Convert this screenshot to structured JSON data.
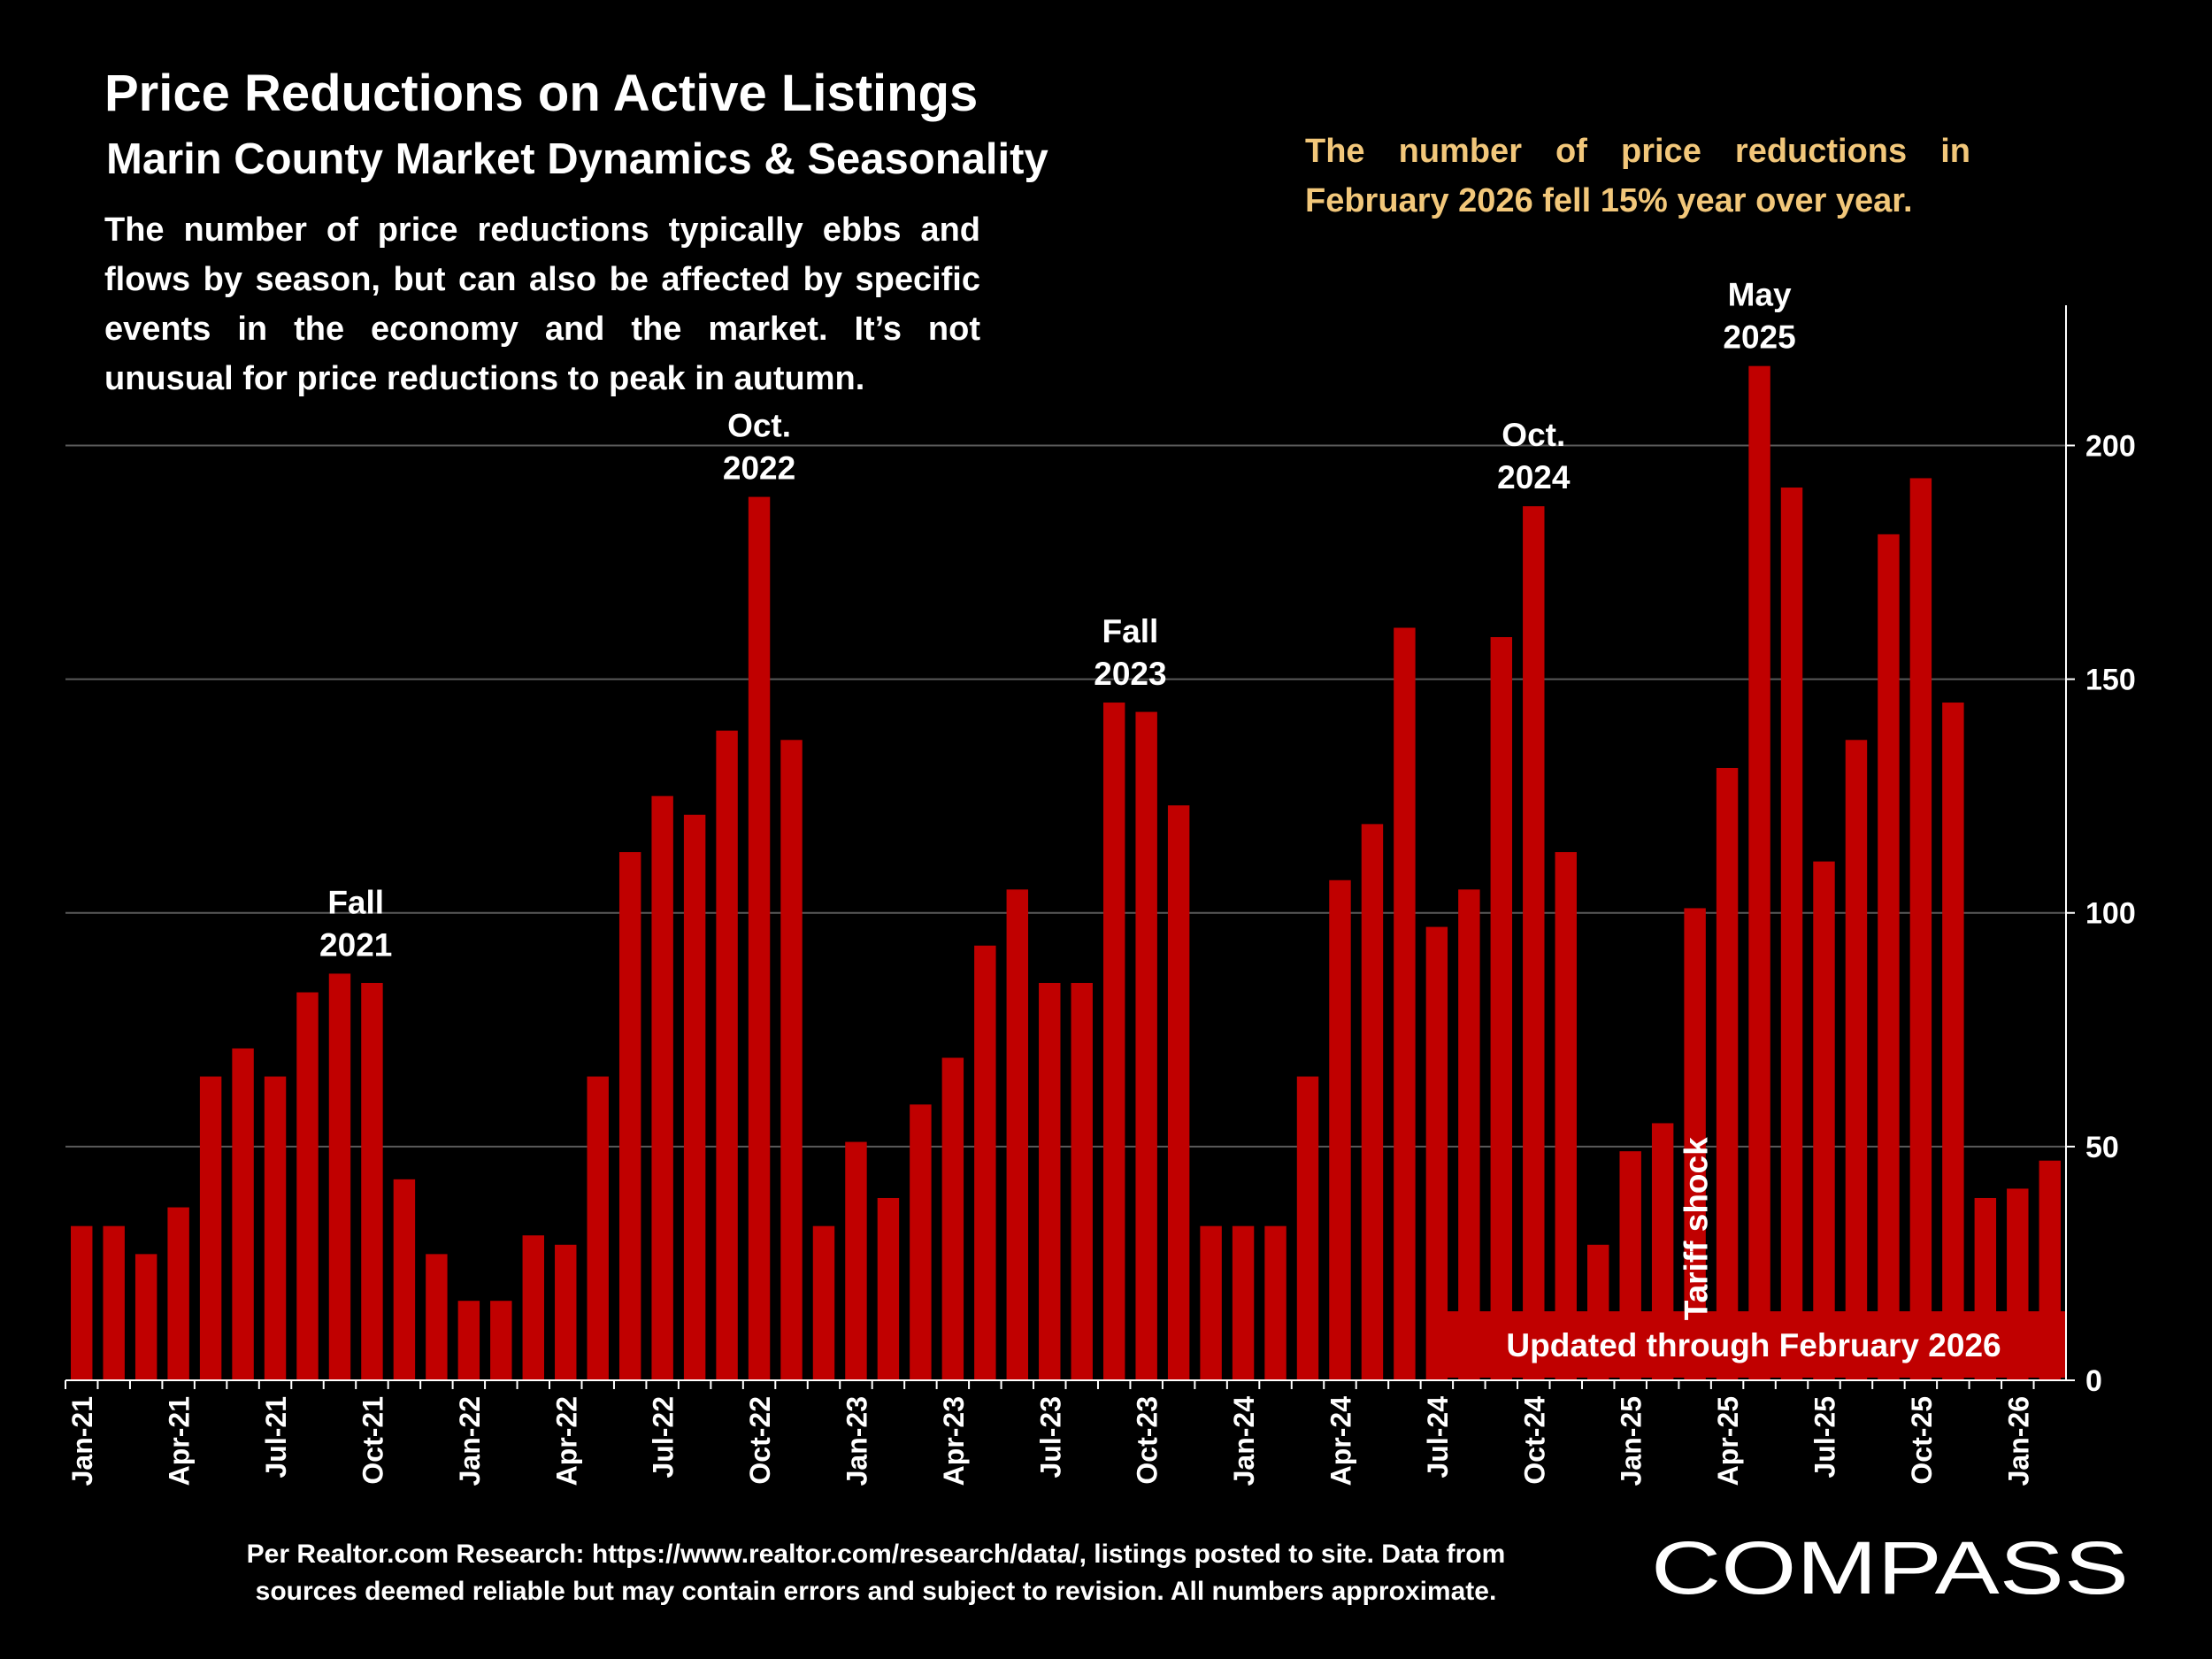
{
  "title": "Price Reductions on Active Listings",
  "subtitle": "Marin County Market Dynamics & Seasonality",
  "description": "The number of price reductions typically ebbs and flows by season, but can also be affected by specific events in the economy and the market. It’s not unusual for price reductions to peak in autumn.",
  "callout": "The number of price reductions in February 2026 fell 15% year over year.",
  "footnote": {
    "line1": "Per Realtor.com Research:  https://www.realtor.com/research/data/, listings posted to site. Data from",
    "line2": "sources deemed reliable but may contain errors and subject to revision. All numbers approximate."
  },
  "logo": {
    "text": "COMPASS"
  },
  "banner": "Updated through February 2026",
  "colors": {
    "bar": "#c00000",
    "background": "#000000",
    "callout": "#f2c77a",
    "grid": "#5a5a5a"
  },
  "chart_data": {
    "type": "bar",
    "categories": [
      "Jan-21",
      "Feb-21",
      "Mar-21",
      "Apr-21",
      "May-21",
      "Jun-21",
      "Jul-21",
      "Aug-21",
      "Sep-21",
      "Oct-21",
      "Nov-21",
      "Dec-21",
      "Jan-22",
      "Feb-22",
      "Mar-22",
      "Apr-22",
      "May-22",
      "Jun-22",
      "Jul-22",
      "Aug-22",
      "Sep-22",
      "Oct-22",
      "Nov-22",
      "Dec-22",
      "Jan-23",
      "Feb-23",
      "Mar-23",
      "Apr-23",
      "May-23",
      "Jun-23",
      "Jul-23",
      "Aug-23",
      "Sep-23",
      "Oct-23",
      "Nov-23",
      "Dec-23",
      "Jan-24",
      "Feb-24",
      "Mar-24",
      "Apr-24",
      "May-24",
      "Jun-24",
      "Jul-24",
      "Aug-24",
      "Sep-24",
      "Oct-24",
      "Nov-24",
      "Dec-24",
      "Jan-25",
      "Feb-25",
      "Mar-25",
      "Apr-25",
      "May-25",
      "Jun-25",
      "Jul-25",
      "Aug-25",
      "Sep-25",
      "Oct-25",
      "Nov-25",
      "Dec-25",
      "Jan-26",
      "Feb-26"
    ],
    "values": [
      33,
      33,
      27,
      37,
      65,
      71,
      65,
      83,
      87,
      85,
      43,
      27,
      17,
      17,
      31,
      29,
      65,
      113,
      125,
      121,
      139,
      189,
      137,
      33,
      51,
      39,
      59,
      69,
      93,
      105,
      85,
      85,
      145,
      143,
      123,
      33,
      33,
      33,
      65,
      107,
      119,
      161,
      97,
      105,
      159,
      187,
      113,
      29,
      49,
      55,
      101,
      131,
      217,
      191,
      111,
      137,
      181,
      193,
      145,
      39,
      41,
      47
    ],
    "tick_labels": [
      "Jan-21",
      "Apr-21",
      "Jul-21",
      "Oct-21",
      "Jan-22",
      "Apr-22",
      "Jul-22",
      "Oct-22",
      "Jan-23",
      "Apr-23",
      "Jul-23",
      "Oct-23",
      "Jan-24",
      "Apr-24",
      "Jul-24",
      "Oct-24",
      "Jan-25",
      "Apr-25",
      "Jul-25",
      "Oct-25",
      "Jan-26"
    ],
    "ylim": [
      0,
      230
    ],
    "yticks": [
      0,
      50,
      100,
      150,
      200
    ],
    "y_axis_side": "right",
    "grid": true,
    "annotations": [
      {
        "category": "Sep-21",
        "lines": [
          "Fall",
          "2021"
        ]
      },
      {
        "category": "Oct-22",
        "lines": [
          "Oct.",
          "2022"
        ]
      },
      {
        "category": "Sep-23",
        "lines": [
          "Fall",
          "2023"
        ]
      },
      {
        "category": "Oct-24",
        "lines": [
          "Oct.",
          "2024"
        ]
      },
      {
        "category": "May-25",
        "lines": [
          "May",
          "2025"
        ]
      }
    ],
    "vertical_annotation": {
      "category": "Mar-25",
      "text": "Tariff shock"
    }
  }
}
